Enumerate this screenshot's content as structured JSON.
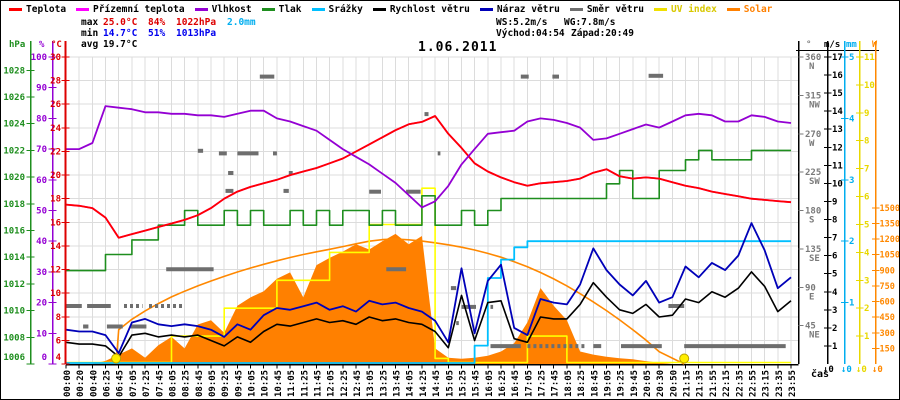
{
  "legend": [
    {
      "label": "Teplota",
      "color": "#ff0000",
      "text_color": "#000000"
    },
    {
      "label": "Přízemní teplota",
      "color": "#ff00ff",
      "text_color": "#000000"
    },
    {
      "label": "Vlhkost",
      "color": "#9400d3",
      "text_color": "#000000"
    },
    {
      "label": "Tlak",
      "color": "#1e8e1e",
      "text_color": "#000000"
    },
    {
      "label": "Srážky",
      "color": "#00bfff",
      "text_color": "#000000"
    },
    {
      "label": "Rychlost větru",
      "color": "#000000",
      "text_color": "#000000"
    },
    {
      "label": "Náraz větru",
      "color": "#0000b8",
      "text_color": "#000000"
    },
    {
      "label": "Směr větru",
      "color": "#6e6e6e",
      "text_color": "#000000"
    },
    {
      "label": "UV index",
      "color": "#f0e000",
      "text_color": "#d8c800"
    },
    {
      "label": "Solar",
      "color": "#ff8000",
      "text_color": "#ff8000"
    }
  ],
  "stats": {
    "max_label": "max",
    "max_temp": "25.0°C",
    "max_hum": "84%",
    "max_pres": "1022hPa",
    "rain_total": "2.0mm",
    "min_label": "min",
    "min_temp": "14.7°C",
    "min_hum": "51%",
    "min_pres": "1013hPa",
    "avg_label": "avg",
    "avg_temp": "19.7°C",
    "wind_speed": "WS:5.2m/s",
    "wind_gust": "WG:7.8m/s",
    "sunrise": "Východ:04:54",
    "sunset": "Západ:20:49"
  },
  "axes": {
    "left": [
      {
        "key": "pres",
        "name": "hPa",
        "color": "#1e8e1e",
        "min": 1006,
        "max": 1029,
        "tick_step": 2,
        "tick_min": 1006,
        "tick_max": 1028
      },
      {
        "key": "hum",
        "name": "%",
        "color": "#9400d3",
        "min": 0,
        "max": 100,
        "tick_step": 10,
        "tick_min": 0,
        "tick_max": 100
      },
      {
        "key": "temp",
        "name": "°C",
        "color": "#dd0000",
        "min": 4,
        "max": 30,
        "tick_step": 2,
        "tick_min": 4,
        "tick_max": 30
      }
    ],
    "right": [
      {
        "key": "deg",
        "name": "°",
        "color": "#7a7a7a",
        "min": 0,
        "max": 360,
        "tick_step": 45,
        "tick_min": 45,
        "tick_max": 360,
        "compass": {
          "45": "NE",
          "90": "E",
          "135": "SE",
          "180": "S",
          "225": "SW",
          "270": "W",
          "315": "NW",
          "360": "N"
        }
      },
      {
        "key": "ms",
        "name": "m/s",
        "color": "#000000",
        "min": 0,
        "max": 17,
        "tick_step": 1,
        "tick_min": 1,
        "tick_max": 17
      },
      {
        "key": "mm",
        "name": "mm",
        "color": "#00aeef",
        "min": 0,
        "max": 5,
        "tick_step": 1,
        "tick_min": 1,
        "tick_max": 5
      },
      {
        "key": "uv",
        "name": "",
        "color": "#e8d800",
        "min": 0,
        "max": 11,
        "tick_step": 1,
        "tick_min": 1,
        "tick_max": 11
      },
      {
        "key": "w",
        "name": "W",
        "color": "#ff8800",
        "min": 0,
        "max": 2950,
        "tick_step": 150,
        "tick_min": 150,
        "tick_max": 1500
      }
    ],
    "x_caption": "čas",
    "zero_labels": [
      "↓0",
      "↓0",
      "↓0",
      "↓0"
    ]
  },
  "chart_data": {
    "type": "line",
    "title": "1.06.2011",
    "grid": true,
    "legend_position": "top",
    "x_labels": [
      "00:00",
      "00:20",
      "00:40",
      "06:25",
      "06:45",
      "07:05",
      "07:25",
      "07:45",
      "08:05",
      "08:25",
      "08:45",
      "09:05",
      "09:25",
      "09:45",
      "10:05",
      "10:25",
      "10:45",
      "11:05",
      "11:25",
      "11:45",
      "12:05",
      "12:25",
      "12:45",
      "13:05",
      "13:25",
      "13:45",
      "14:05",
      "14:25",
      "14:45",
      "15:05",
      "15:25",
      "15:45",
      "16:05",
      "16:25",
      "16:45",
      "17:05",
      "17:25",
      "17:45",
      "18:05",
      "18:25",
      "18:45",
      "19:05",
      "19:25",
      "19:45",
      "20:05",
      "20:30",
      "20:50",
      "21:15",
      "21:35",
      "21:55",
      "22:15",
      "22:35",
      "22:55",
      "23:15",
      "23:35",
      "23:55"
    ],
    "series": [
      {
        "name": "Teplota",
        "unit": "°C",
        "axis": "temp",
        "color": "#ff0000",
        "values": [
          17.5,
          17.4,
          17.2,
          16.4,
          14.7,
          15.0,
          15.3,
          15.6,
          15.9,
          16.2,
          16.6,
          17.2,
          18.0,
          18.6,
          19.0,
          19.3,
          19.6,
          20.0,
          20.3,
          20.6,
          21.0,
          21.4,
          22.0,
          22.6,
          23.2,
          23.8,
          24.3,
          24.5,
          25.0,
          23.5,
          22.3,
          21.0,
          20.3,
          19.8,
          19.4,
          19.1,
          19.3,
          19.4,
          19.5,
          19.7,
          20.2,
          20.5,
          19.9,
          19.7,
          19.8,
          19.7,
          19.4,
          19.1,
          18.9,
          18.6,
          18.4,
          18.2,
          18.0,
          17.9,
          17.8,
          17.7
        ]
      },
      {
        "name": "Přízemní teplota",
        "unit": "°C",
        "axis": "temp",
        "color": "#ff00ff",
        "values": [
          17.5,
          17.4,
          17.2,
          16.4,
          14.7,
          15.0,
          15.3,
          15.6,
          15.9,
          16.2,
          16.6,
          17.2,
          18.0,
          18.6,
          19.0,
          19.3,
          19.6,
          20.0,
          20.3,
          20.6,
          21.0,
          21.4,
          22.0,
          22.6,
          23.2,
          23.8,
          24.3,
          24.5,
          25.0,
          23.5,
          22.3,
          21.0,
          20.3,
          19.8,
          19.4,
          19.1,
          19.3,
          19.4,
          19.5,
          19.7,
          20.2,
          20.5,
          19.9,
          19.7,
          19.8,
          19.7,
          19.4,
          19.1,
          18.9,
          18.6,
          18.4,
          18.2,
          18.0,
          17.9,
          17.8,
          17.7
        ]
      },
      {
        "name": "Vlhkost",
        "unit": "%",
        "axis": "hum",
        "color": "#9400d3",
        "values": [
          70,
          70,
          72,
          84,
          83.5,
          83,
          82,
          82,
          81.5,
          81.5,
          81,
          81,
          80.5,
          81.5,
          82.5,
          82.5,
          80,
          79,
          77.5,
          76,
          73,
          70,
          67.5,
          65,
          62,
          59,
          55,
          51,
          53,
          58,
          65,
          70,
          75,
          75.5,
          76,
          79,
          80,
          79.5,
          78.5,
          77,
          73,
          73.5,
          75,
          76.5,
          78,
          77,
          79,
          81,
          81.5,
          81,
          79,
          79,
          81,
          80.5,
          79,
          78.5
        ]
      },
      {
        "name": "Tlak",
        "unit": "hPa",
        "axis": "pres",
        "color": "#1e8e1e",
        "style": "step",
        "values": [
          1013,
          1013,
          1013,
          1014.2,
          1014.2,
          1015.3,
          1015.3,
          1016.4,
          1016.4,
          1017.5,
          1016.4,
          1016.4,
          1017.5,
          1016.4,
          1017.5,
          1016.4,
          1016.4,
          1017.5,
          1016.4,
          1017.5,
          1016.4,
          1017.5,
          1017.5,
          1016.4,
          1017.5,
          1016.4,
          1016.4,
          1018.6,
          1016.4,
          1016.4,
          1017.5,
          1016.4,
          1017.5,
          1018.4,
          1018.4,
          1018.4,
          1018.4,
          1018.4,
          1018.4,
          1018.4,
          1018.4,
          1019.5,
          1020.5,
          1018.4,
          1018.4,
          1020.5,
          1020.5,
          1021.3,
          1022,
          1021.3,
          1021.3,
          1021.3,
          1022,
          1022,
          1022,
          1022
        ]
      },
      {
        "name": "Srážky",
        "unit": "mm",
        "axis": "mm",
        "color": "#00bfff",
        "style": "step",
        "values": [
          0,
          0,
          0,
          0,
          0,
          0,
          0,
          0,
          0,
          0,
          0,
          0,
          0,
          0,
          0,
          0,
          0,
          0,
          0,
          0,
          0,
          0,
          0,
          0,
          0,
          0,
          0,
          0,
          0,
          0,
          0,
          0.3,
          1.4,
          1.7,
          1.9,
          2.0,
          2.0,
          2.0,
          2.0,
          2.0,
          2.0,
          2.0,
          2.0,
          2.0,
          2.0,
          2.0,
          2.0,
          2.0,
          2.0,
          2.0,
          2.0,
          2.0,
          2.0,
          2.0,
          2.0,
          2.0
        ]
      },
      {
        "name": "Rychlost větru",
        "unit": "m/s",
        "axis": "ms",
        "color": "#000000",
        "values": [
          1.2,
          1.1,
          1.1,
          1.0,
          0.4,
          1.6,
          1.7,
          1.5,
          1.6,
          1.5,
          1.6,
          1.3,
          1.0,
          1.5,
          1.2,
          1.8,
          2.2,
          2.1,
          2.3,
          2.5,
          2.3,
          2.4,
          2.2,
          2.6,
          2.4,
          2.5,
          2.3,
          2.2,
          1.8,
          0.9,
          3.8,
          1.3,
          3.4,
          3.5,
          1.4,
          1.2,
          2.6,
          2.5,
          2.5,
          3.3,
          4.5,
          3.7,
          3.0,
          2.8,
          3.3,
          2.6,
          2.7,
          3.6,
          3.4,
          4.0,
          3.7,
          4.2,
          5.1,
          4.3,
          2.9,
          3.5
        ]
      },
      {
        "name": "Náraz větru",
        "unit": "m/s",
        "axis": "ms",
        "color": "#0000b8",
        "values": [
          1.9,
          1.8,
          1.8,
          1.6,
          0.6,
          2.3,
          2.5,
          2.2,
          2.1,
          2.2,
          2.1,
          1.9,
          1.5,
          2.2,
          1.9,
          2.7,
          3.1,
          3.0,
          3.2,
          3.4,
          3.0,
          3.2,
          2.9,
          3.5,
          3.3,
          3.4,
          3.1,
          2.9,
          2.4,
          1.2,
          5.3,
          1.7,
          4.6,
          5.5,
          2.0,
          1.6,
          3.6,
          3.4,
          3.3,
          4.4,
          6.4,
          5.2,
          4.4,
          3.8,
          4.6,
          3.4,
          3.7,
          5.4,
          4.8,
          5.6,
          5.2,
          6.0,
          7.8,
          6.3,
          4.2,
          4.8
        ]
      },
      {
        "name": "UV index",
        "unit": "UV",
        "axis": "uv",
        "color": "#ffff00",
        "style": "step",
        "values": [
          0,
          0,
          0,
          0,
          0,
          0,
          0,
          0,
          1,
          1,
          1,
          1,
          2,
          2,
          2,
          2,
          3,
          3,
          3,
          3,
          4,
          4,
          4,
          5,
          5,
          5,
          5,
          6.3,
          0.2,
          0,
          0,
          0,
          0,
          0,
          0,
          1,
          1,
          1,
          0,
          0,
          0,
          0,
          0,
          0,
          0,
          0,
          0,
          0,
          0,
          0,
          0,
          0,
          0,
          0,
          0,
          0
        ]
      },
      {
        "name": "Solar",
        "unit": "W",
        "axis": "w",
        "color": "#ff8000",
        "style": "area",
        "values": [
          0,
          0,
          0,
          30,
          90,
          150,
          60,
          180,
          260,
          150,
          380,
          420,
          300,
          560,
          640,
          700,
          820,
          880,
          640,
          950,
          1020,
          1080,
          1150,
          1100,
          1180,
          1250,
          1150,
          1230,
          150,
          60,
          50,
          60,
          80,
          120,
          200,
          400,
          730,
          560,
          420,
          120,
          90,
          70,
          55,
          45,
          28,
          12,
          0,
          0,
          0,
          0,
          0,
          0,
          0,
          0,
          0,
          0
        ]
      }
    ],
    "solar_arc": {
      "name": "Solar (teoretický)",
      "axis": "w",
      "color": "#ff8800",
      "points": [
        [
          3.8,
          0
        ],
        [
          4,
          330
        ],
        [
          5,
          430
        ],
        [
          6,
          510
        ],
        [
          7,
          580
        ],
        [
          8,
          645
        ],
        [
          9,
          700
        ],
        [
          10,
          750
        ],
        [
          11,
          798
        ],
        [
          12,
          842
        ],
        [
          13,
          884
        ],
        [
          14,
          922
        ],
        [
          15,
          958
        ],
        [
          16,
          992
        ],
        [
          17,
          1023
        ],
        [
          18,
          1052
        ],
        [
          19,
          1078
        ],
        [
          20,
          1102
        ],
        [
          21,
          1128
        ],
        [
          22,
          1155
        ],
        [
          23,
          1180
        ],
        [
          24,
          1195
        ],
        [
          25,
          1200
        ],
        [
          26,
          1193
        ],
        [
          27,
          1181
        ],
        [
          28,
          1165
        ],
        [
          29,
          1145
        ],
        [
          30,
          1122
        ],
        [
          31,
          1095
        ],
        [
          32,
          1063
        ],
        [
          33,
          1026
        ],
        [
          34,
          983
        ],
        [
          35,
          934
        ],
        [
          36,
          879
        ],
        [
          37,
          818
        ],
        [
          38,
          750
        ],
        [
          39,
          676
        ],
        [
          40,
          597
        ],
        [
          41,
          513
        ],
        [
          42,
          424
        ],
        [
          43,
          330
        ],
        [
          44,
          230
        ],
        [
          45,
          118
        ],
        [
          46.9,
          0
        ]
      ]
    },
    "wind_direction": {
      "name": "Směr větru",
      "unit": "°",
      "axis": "deg",
      "color": "#6e6e6e",
      "segments": [
        [
          0,
          1.2,
          68
        ],
        [
          1.6,
          3.4,
          68
        ],
        [
          4.4,
          5.8,
          68,
          1
        ],
        [
          6.3,
          9.0,
          68,
          1
        ],
        [
          1.3,
          1.7,
          44
        ],
        [
          3.1,
          4.3,
          44
        ],
        [
          4.9,
          6.1,
          44
        ],
        [
          7.6,
          11.2,
          111
        ],
        [
          24.3,
          25.8,
          111
        ],
        [
          10.0,
          10.4,
          250
        ],
        [
          11.6,
          12.2,
          247
        ],
        [
          13.0,
          14.6,
          247
        ],
        [
          15.7,
          16.0,
          247
        ],
        [
          28.2,
          28.4,
          247
        ],
        [
          12.1,
          12.7,
          203
        ],
        [
          16.5,
          16.9,
          203
        ],
        [
          23.0,
          23.9,
          202
        ],
        [
          25.8,
          26.9,
          202
        ],
        [
          12.3,
          12.7,
          224
        ],
        [
          16.9,
          17.2,
          224
        ],
        [
          14.7,
          15.8,
          337
        ],
        [
          34.5,
          35.1,
          337
        ],
        [
          36.9,
          37.4,
          337
        ],
        [
          44.2,
          45.3,
          338
        ],
        [
          27.2,
          27.5,
          293
        ],
        [
          29.2,
          29.6,
          89
        ],
        [
          29.6,
          29.8,
          48
        ],
        [
          30.0,
          31.1,
          67
        ],
        [
          32.2,
          32.4,
          67
        ],
        [
          45.7,
          46.9,
          68
        ],
        [
          32.2,
          34.5,
          21
        ],
        [
          35.0,
          39.5,
          21,
          1
        ],
        [
          40.0,
          40.6,
          21
        ],
        [
          42.1,
          45.2,
          21
        ],
        [
          46.9,
          54.6,
          21
        ]
      ]
    },
    "sun_markers": {
      "sunrise_index": 3.8,
      "sunset_index": 46.9,
      "color": "#ffee00"
    }
  }
}
